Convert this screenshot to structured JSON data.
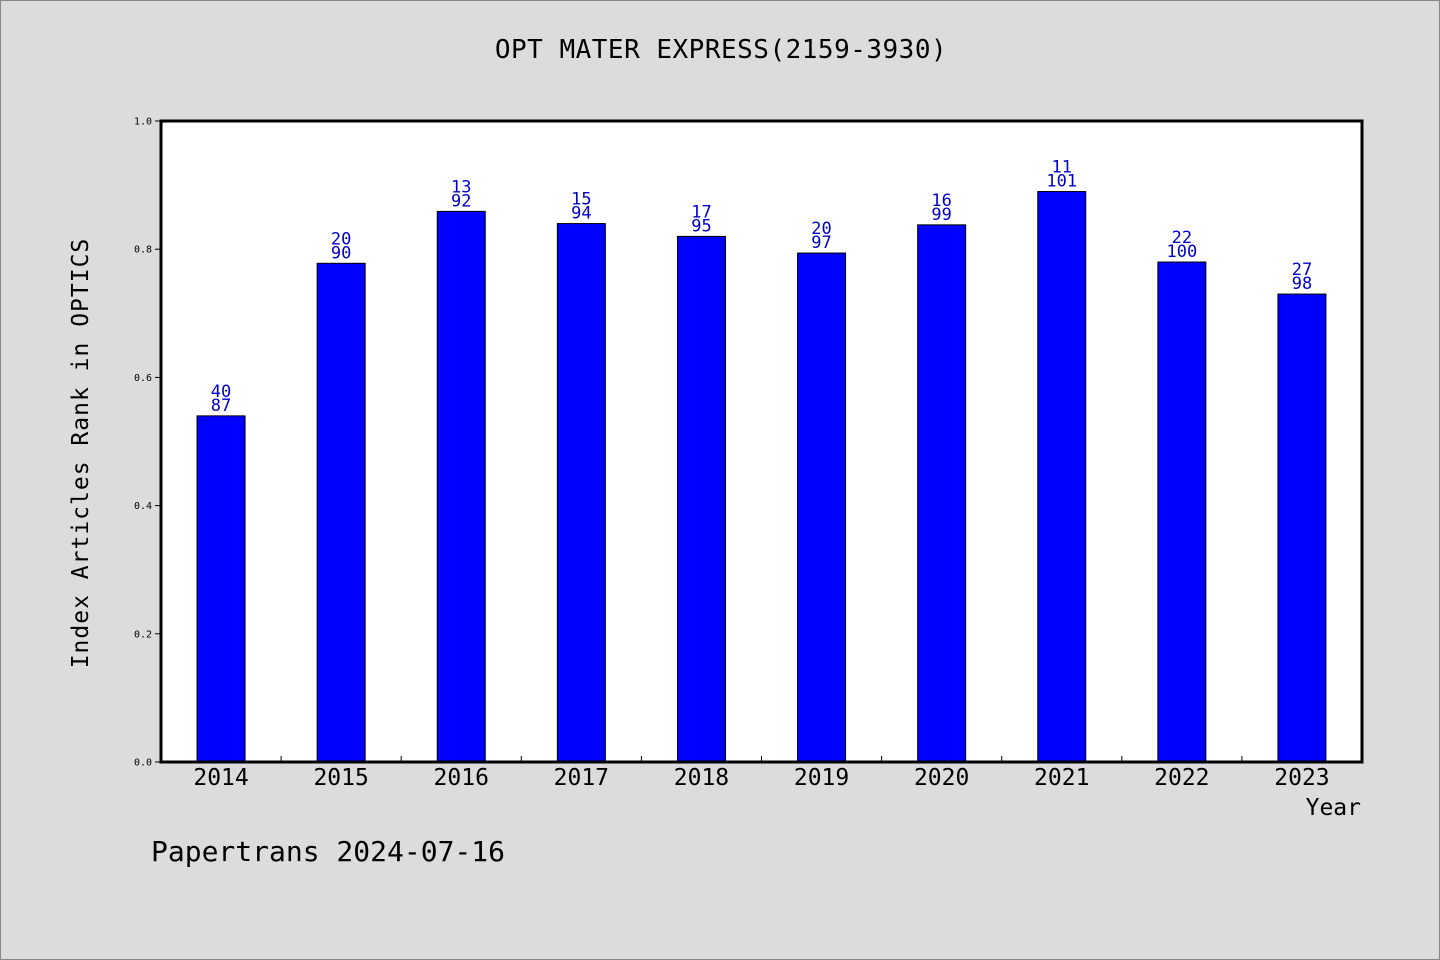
{
  "chart_data": {
    "type": "bar",
    "title": "OPT MATER EXPRESS(2159-3930)",
    "xlabel": "Year",
    "ylabel": "Index Articles Rank in OPTICS",
    "ylim": [
      0,
      1.0
    ],
    "yticks": [
      "0.0",
      "0.2",
      "0.4",
      "0.6",
      "0.8",
      "1.0"
    ],
    "categories": [
      "2014",
      "2015",
      "2016",
      "2017",
      "2018",
      "2019",
      "2020",
      "2021",
      "2022",
      "2023"
    ],
    "values": [
      0.54,
      0.778,
      0.859,
      0.84,
      0.82,
      0.794,
      0.838,
      0.89,
      0.78,
      0.73
    ],
    "rank_labels": [
      "40",
      "20",
      "13",
      "15",
      "17",
      "20",
      "16",
      "11",
      "22",
      "27"
    ],
    "total_labels": [
      "87",
      "90",
      "92",
      "94",
      "95",
      "97",
      "99",
      "101",
      "100",
      "98"
    ],
    "grid": false,
    "legend": "none",
    "colors": {
      "bar": "#0000ff",
      "bar_label": "#0000cc",
      "background": "#dcdcdc",
      "plot_background": "#ffffff"
    }
  },
  "footer": "Papertrans 2024-07-16"
}
